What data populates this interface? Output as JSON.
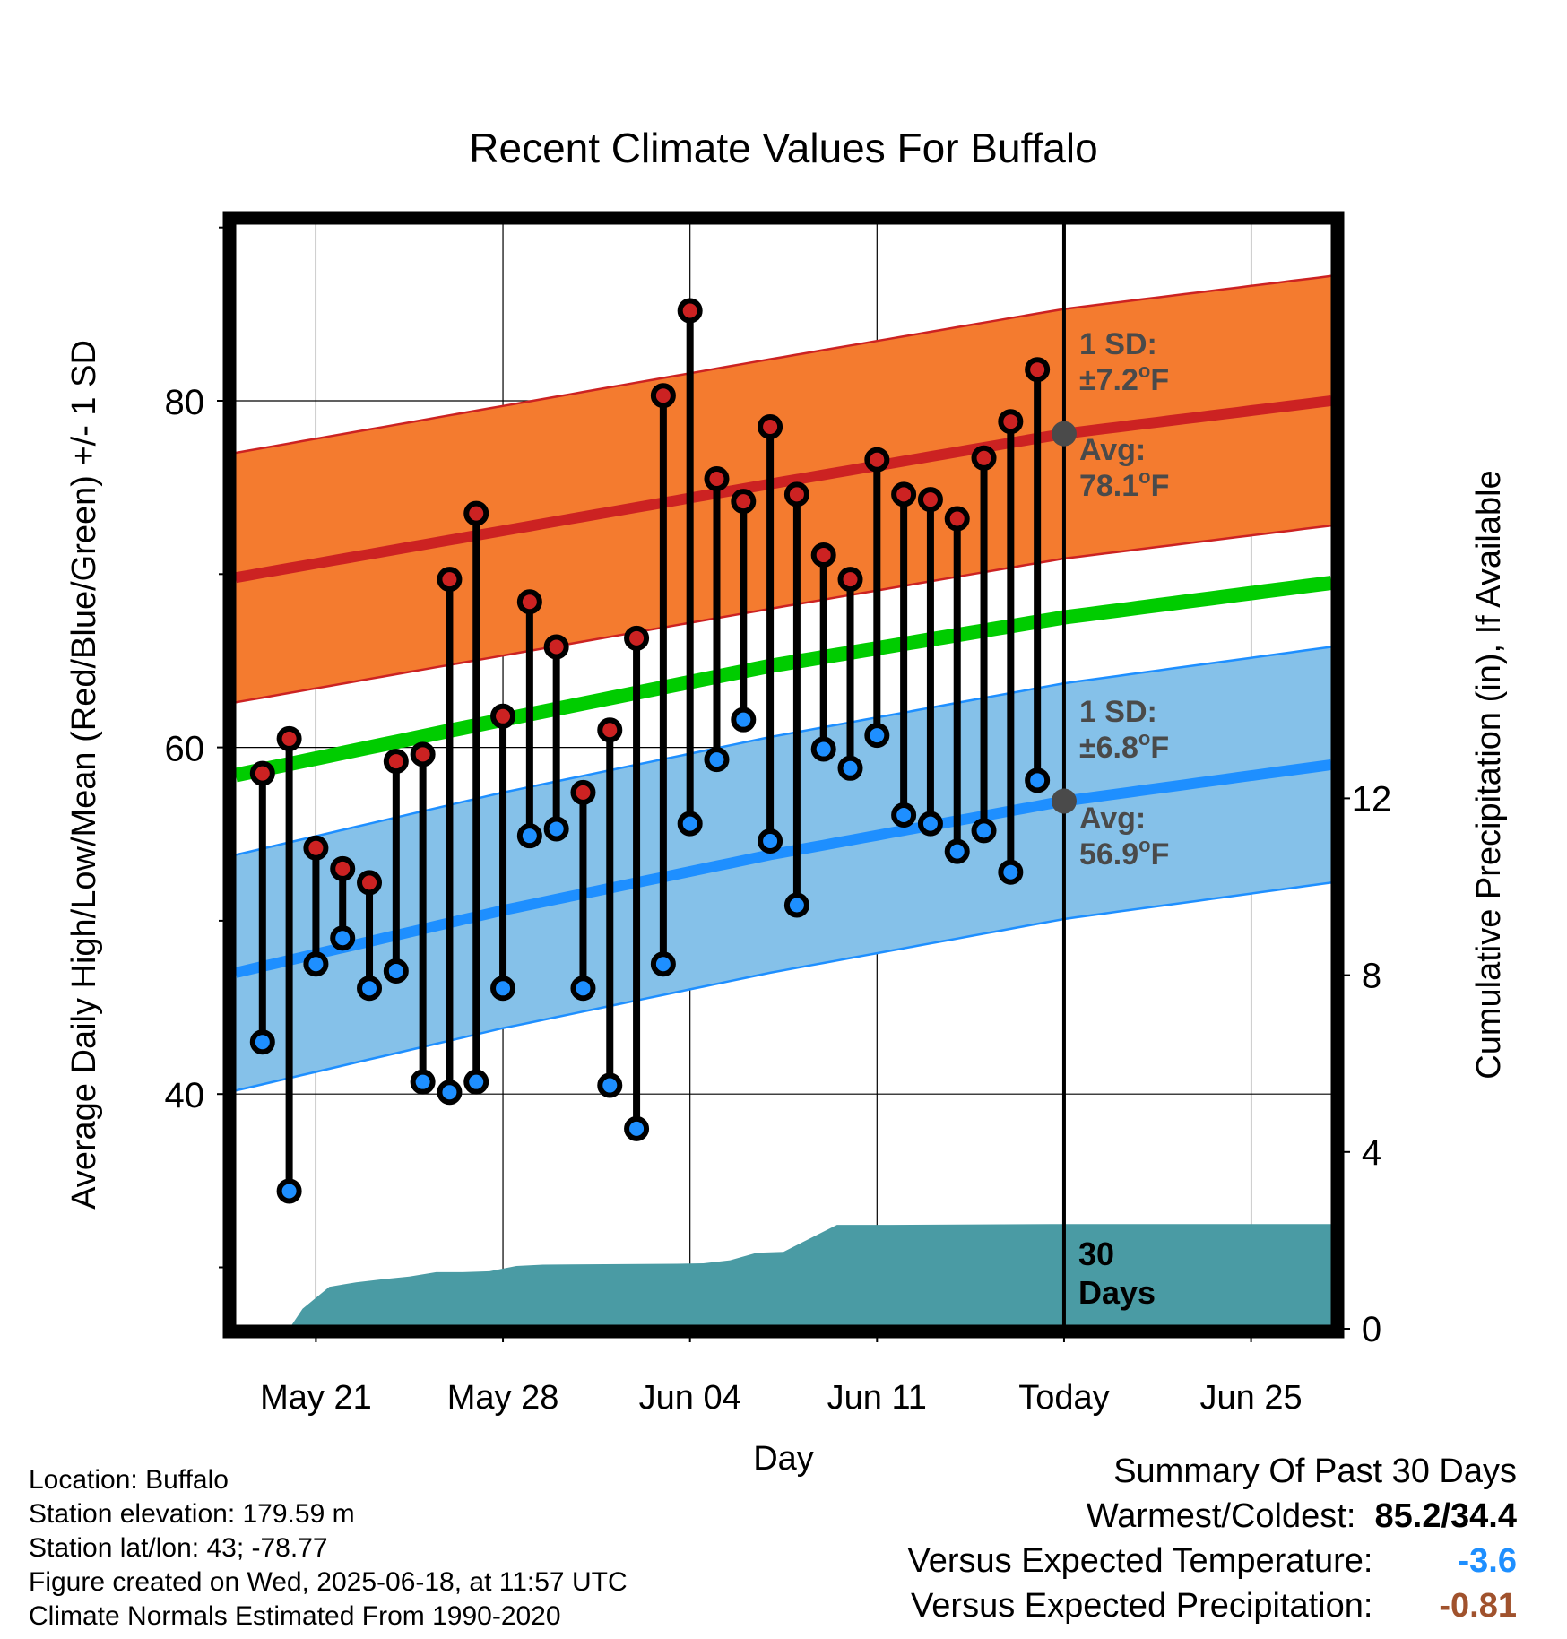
{
  "chart_data": {
    "type": "line",
    "title": "Recent Climate Values For Buffalo",
    "xlabel": "Day",
    "ylabel_left": "Average Daily High/Low/Mean (Red/Blue/Green) +/- 1 SD",
    "ylabel_right": "Cumulative Precipitation (in), If Available",
    "x_start": "May 18",
    "x_end": "Jun 27",
    "xlim_days": [
      0,
      41
    ],
    "ylim": [
      27,
      90
    ],
    "ylim_right": [
      0,
      28.7
    ],
    "xticks": [
      {
        "day": 3,
        "label": "May 21"
      },
      {
        "day": 10,
        "label": "May 28"
      },
      {
        "day": 17,
        "label": "Jun 04"
      },
      {
        "day": 24,
        "label": "Jun 11"
      },
      {
        "day": 31,
        "label": "Today"
      },
      {
        "day": 38,
        "label": "Jun 25"
      }
    ],
    "yticks": [
      40,
      60,
      80
    ],
    "yticks_minor": [
      30,
      50,
      70,
      90
    ],
    "yticks_right": [
      0,
      4,
      8,
      12
    ],
    "today_day": 31,
    "days": [
      1,
      2,
      3,
      4,
      5,
      6,
      7,
      8,
      9,
      10,
      11,
      12,
      13,
      14,
      15,
      16,
      17,
      18,
      19,
      20,
      21,
      22,
      23,
      24,
      25,
      26,
      27,
      28,
      29,
      30
    ],
    "highs": [
      58.5,
      60.5,
      54.2,
      53.0,
      52.2,
      59.2,
      59.6,
      69.7,
      73.5,
      61.8,
      68.4,
      65.8,
      57.4,
      61.0,
      66.3,
      80.3,
      85.2,
      75.5,
      74.2,
      78.5,
      74.6,
      71.1,
      69.7,
      76.6,
      74.6,
      74.3,
      73.2,
      76.7,
      78.8,
      81.8
    ],
    "lows": [
      43.0,
      34.4,
      47.5,
      49.0,
      46.1,
      47.1,
      40.7,
      40.1,
      40.7,
      46.1,
      54.9,
      55.3,
      46.1,
      40.5,
      38.0,
      47.5,
      55.6,
      59.3,
      61.6,
      54.6,
      50.9,
      59.9,
      58.8,
      60.7,
      56.1,
      55.6,
      54.0,
      55.2,
      52.8,
      58.1
    ],
    "normal_high": {
      "day": [
        0,
        10,
        20,
        31,
        41
      ],
      "value": [
        69.8,
        72.5,
        75.2,
        78.1,
        80.0
      ]
    },
    "normal_high_sd": 7.2,
    "normal_low": {
      "day": [
        0,
        10,
        20,
        31,
        41
      ],
      "value": [
        47.0,
        50.6,
        53.8,
        56.9,
        59.0
      ]
    },
    "normal_low_sd": 6.8,
    "normal_mean": {
      "day": [
        0,
        10,
        20,
        31,
        41
      ],
      "value": [
        58.4,
        61.6,
        64.7,
        67.5,
        69.5
      ]
    },
    "precip_cumulative": {
      "day": [
        2,
        2.5,
        3.5,
        4.5,
        5.5,
        6.5,
        7.5,
        8.5,
        9.5,
        10.5,
        11.5,
        16.5,
        17.5,
        18.5,
        19.5,
        20.5,
        22.5,
        24.5,
        30.5,
        41
      ],
      "value": [
        0,
        0.45,
        0.95,
        1.05,
        1.12,
        1.18,
        1.28,
        1.28,
        1.3,
        1.42,
        1.45,
        1.47,
        1.48,
        1.55,
        1.72,
        1.74,
        2.35,
        2.35,
        2.37,
        2.37
      ]
    },
    "annotations": {
      "high_sd_title": "1 SD:",
      "high_sd_value": "±7.2",
      "high_avg_title": "Avg:",
      "high_avg_value": "78.1",
      "low_sd_title": "1 SD:",
      "low_sd_value": "±6.8",
      "low_avg_title": "Avg:",
      "low_avg_value": "56.9",
      "deg_o": "o",
      "unit_f": "F",
      "days_count": "30",
      "days_label": "Days"
    },
    "colors": {
      "high_band": "#f47b2f",
      "high_line": "#cc2222",
      "low_band": "#85c1e9",
      "low_line": "#1e8fff",
      "mean_line": "#00cc00",
      "precip": "#4a9ba4",
      "high_dot": "#cc2222",
      "low_dot": "#1e8fff",
      "annotation": "#4a4a4a"
    }
  },
  "info": {
    "location": "Location: Buffalo",
    "elevation": "Station elevation: 179.59 m",
    "latlon": "Station lat/lon: 43; -78.77",
    "created": "Figure created on Wed, 2025-06-18, at 11:57 UTC",
    "normals": "Climate Normals Estimated From 1990-2020"
  },
  "summary": {
    "title": "Summary Of Past 30 Days",
    "warm_cold_label": "Warmest/Coldest:",
    "warm_cold_value": "85.2/34.4",
    "temp_label": "Versus Expected Temperature:",
    "temp_value": "-3.6",
    "temp_color": "#1e8fff",
    "precip_label": "Versus Expected Precipitation:",
    "precip_value": "-0.81",
    "precip_color": "#a0522d"
  }
}
